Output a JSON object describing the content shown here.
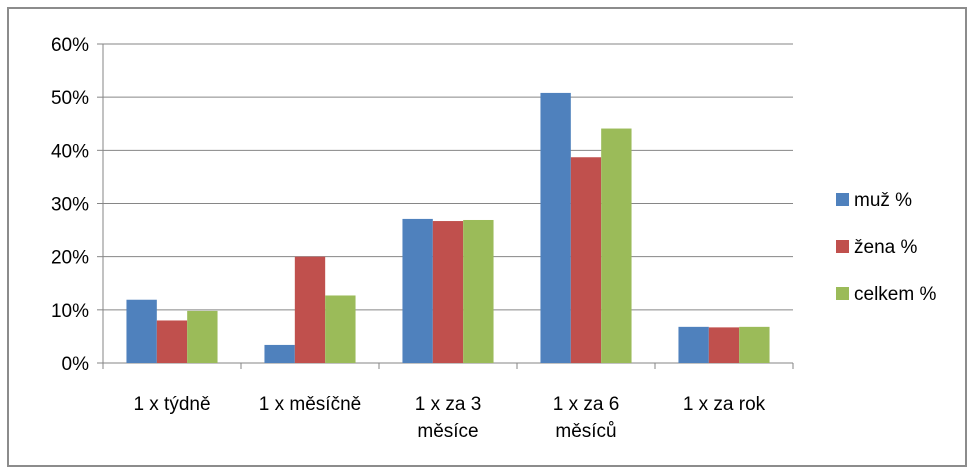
{
  "chart_data": {
    "type": "bar",
    "title": "",
    "xlabel": "",
    "ylabel": "",
    "ylim": [
      0,
      60
    ],
    "y_ticks": [
      "0%",
      "10%",
      "20%",
      "30%",
      "40%",
      "50%",
      "60%"
    ],
    "grid": true,
    "legend_position": "right",
    "categories": [
      [
        "1 x týdně"
      ],
      [
        "1 x měsíčně"
      ],
      [
        "1 x za 3",
        "měsíce"
      ],
      [
        "1 x za 6",
        "měsíců"
      ],
      [
        "1 x za rok"
      ]
    ],
    "series": [
      {
        "name": "muž %",
        "color": "#4f81bd",
        "values": [
          11.9,
          3.4,
          27.1,
          50.8,
          6.8
        ]
      },
      {
        "name": "žena %",
        "color": "#c0504d",
        "values": [
          8.0,
          20.0,
          26.7,
          38.7,
          6.7
        ]
      },
      {
        "name": "celkem %",
        "color": "#9bbb59",
        "values": [
          9.8,
          12.7,
          26.9,
          44.1,
          6.8
        ]
      }
    ]
  }
}
